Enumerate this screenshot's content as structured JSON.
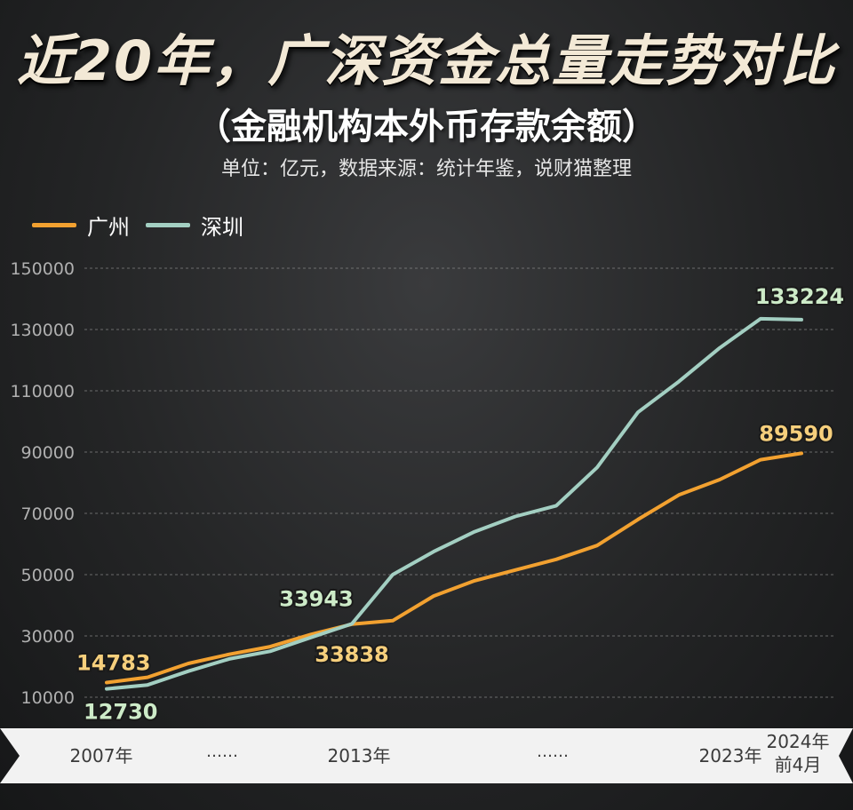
{
  "colors": {
    "guangzhou": "#f2a130",
    "shenzhen": "#a3cfc2",
    "guangzhou_label": "#f6cf7c",
    "shenzhen_label": "#cdebc8",
    "grid": "#8a8a8a",
    "tick": "#b0b0b0",
    "band": "#f2f2f2",
    "band_text": "#3a3a3a"
  },
  "header": {
    "title": "近20年，广深资金总量走势对比",
    "subtitle": "（金融机构本外币存款余额）",
    "source": "单位：亿元，数据来源：统计年鉴，说财猫整理"
  },
  "legend": [
    {
      "name": "广州",
      "color": "#f2a130"
    },
    {
      "name": "深圳",
      "color": "#a3cfc2"
    }
  ],
  "chart_data": {
    "type": "line",
    "title": "近20年，广深资金总量走势对比",
    "subtitle": "（金融机构本外币存款余额）",
    "unit_note": "单位：亿元，数据来源：统计年鉴，说财猫整理",
    "ylim": [
      10000,
      150000
    ],
    "yticks": [
      10000,
      30000,
      50000,
      70000,
      90000,
      110000,
      130000,
      150000
    ],
    "grid": true,
    "legend_position": "top-left",
    "x_band_labels": [
      "2007年",
      "……",
      "2013年",
      "……",
      "2023年",
      "2024年",
      "前4月"
    ],
    "x": [
      2007,
      2008,
      2009,
      2010,
      2011,
      2012,
      2013,
      2014,
      2015,
      2016,
      2017,
      2018,
      2019,
      2020,
      2021,
      2022,
      2023,
      "2024前4月"
    ],
    "series": [
      {
        "name": "广州",
        "values": [
          14783,
          16500,
          21000,
          24000,
          26500,
          30500,
          33838,
          35000,
          43000,
          48000,
          51500,
          55000,
          59500,
          68000,
          76000,
          81000,
          87500,
          89590
        ],
        "labels": [
          {
            "index": 0,
            "text": "14783"
          },
          {
            "index": 6,
            "text": "33838"
          },
          {
            "index": 17,
            "text": "89590"
          }
        ]
      },
      {
        "name": "深圳",
        "values": [
          12730,
          14000,
          18500,
          22500,
          25000,
          29500,
          33943,
          50000,
          57500,
          64000,
          69000,
          72500,
          85000,
          103000,
          113000,
          124000,
          133500,
          133224
        ],
        "labels": [
          {
            "index": 6,
            "text": "33943"
          },
          {
            "index": 0,
            "text": "12730"
          },
          {
            "index": 17,
            "text": "133224"
          }
        ]
      }
    ]
  }
}
